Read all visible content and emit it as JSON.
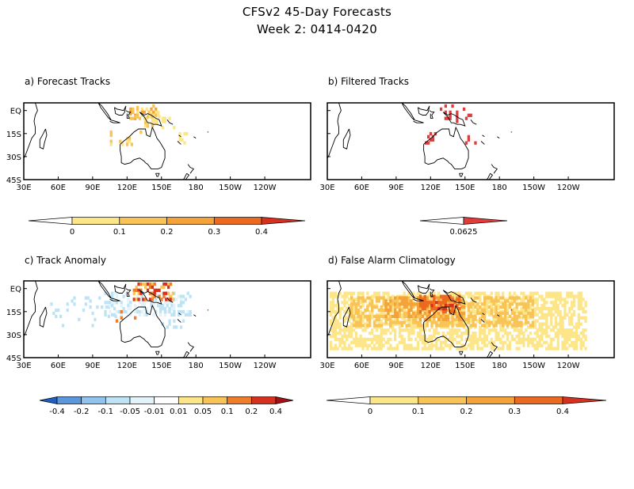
{
  "header": {
    "title": "CFSv2 45-Day Forecasts",
    "subtitle": "Week 2: 0414-0420"
  },
  "chart_data": [
    {
      "type": "heatmap",
      "id": "a",
      "title": "a) Forecast Tracks",
      "xticks": [
        "30E",
        "60E",
        "90E",
        "120E",
        "150E",
        "180",
        "150W",
        "120W"
      ],
      "yticks": [
        "EQ",
        "15S",
        "30S",
        "45S"
      ],
      "colorbar": {
        "labels": [
          "0",
          "0.1",
          "0.2",
          "0.3",
          "0.4"
        ],
        "colors": [
          "#ffffff",
          "#fde68a",
          "#f8c457",
          "#f3a33a",
          "#ec6a1f",
          "#d7301f"
        ]
      }
    },
    {
      "type": "heatmap",
      "id": "b",
      "title": "b) Filtered Tracks",
      "xticks": [
        "30E",
        "60E",
        "90E",
        "120E",
        "150E",
        "180",
        "150W",
        "120W"
      ],
      "yticks": [],
      "colorbar": {
        "labels": [
          "0.0625"
        ],
        "colors": [
          "#ffffff",
          "#e03c3c"
        ]
      }
    },
    {
      "type": "heatmap",
      "id": "c",
      "title": "c) Track Anomaly",
      "xticks": [
        "30E",
        "60E",
        "90E",
        "120E",
        "150E",
        "180",
        "150W",
        "120W"
      ],
      "yticks": [
        "EQ",
        "15S",
        "30S",
        "45S"
      ],
      "colorbar": {
        "labels": [
          "-0.4",
          "-0.2",
          "-0.1",
          "-0.05",
          "-0.01",
          "0.01",
          "0.05",
          "0.1",
          "0.2",
          "0.4"
        ],
        "colors": [
          "#1f5fbf",
          "#5b97dd",
          "#92c2ee",
          "#bde3f5",
          "#e2f4fa",
          "#ffffff",
          "#fde68a",
          "#f8c457",
          "#ef7d2a",
          "#d7301f",
          "#a50f15"
        ]
      }
    },
    {
      "type": "heatmap",
      "id": "d",
      "title": "d) False Alarm Climatology",
      "xticks": [
        "30E",
        "60E",
        "90E",
        "120E",
        "150E",
        "180",
        "150W",
        "120W"
      ],
      "yticks": [],
      "colorbar": {
        "labels": [
          "0",
          "0.1",
          "0.2",
          "0.3",
          "0.4"
        ],
        "colors": [
          "#ffffff",
          "#fde68a",
          "#f8c457",
          "#f3a33a",
          "#ec6a1f",
          "#d7301f"
        ]
      }
    }
  ]
}
